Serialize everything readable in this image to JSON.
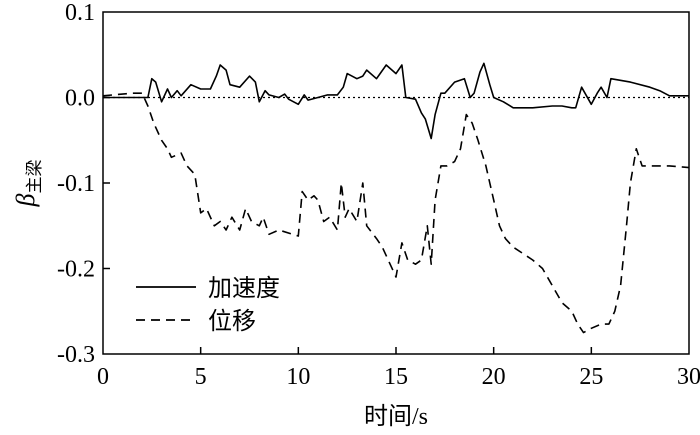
{
  "chart_data": {
    "type": "line",
    "title": "",
    "xlabel": "时间/s",
    "ylabel_main": "β",
    "ylabel_sub": "主梁",
    "xlim": [
      0,
      30
    ],
    "ylim": [
      -0.3,
      0.1
    ],
    "xticks": [
      0,
      5,
      10,
      15,
      20,
      25,
      30
    ],
    "xtick_labels": [
      "0",
      "5",
      "10",
      "15",
      "20",
      "25",
      "30"
    ],
    "yticks": [
      0.1,
      0.0,
      -0.1,
      -0.2,
      -0.3
    ],
    "ytick_labels": [
      "0.1",
      "0.0",
      "-0.1",
      "-0.2",
      "-0.3"
    ],
    "grid": false,
    "legend_position": "bottom-left",
    "reference_line": {
      "y": 0.0,
      "style": "dotted"
    },
    "series": [
      {
        "name": "加速度",
        "style": "solid",
        "x": [
          0,
          2.3,
          2.5,
          2.7,
          3.0,
          3.3,
          3.5,
          3.8,
          4.0,
          4.5,
          5.0,
          5.5,
          5.8,
          6.0,
          6.3,
          6.5,
          7.0,
          7.5,
          7.8,
          8.0,
          8.3,
          8.5,
          9.0,
          9.3,
          9.5,
          10.0,
          10.3,
          10.5,
          11.0,
          11.5,
          12.0,
          12.3,
          12.5,
          13.0,
          13.3,
          13.5,
          14.0,
          14.5,
          15.0,
          15.3,
          15.5,
          16.0,
          16.3,
          16.5,
          16.8,
          17.0,
          17.3,
          17.5,
          18.0,
          18.5,
          18.8,
          19.0,
          19.3,
          19.5,
          19.8,
          20.0,
          20.5,
          21.0,
          22.0,
          23.0,
          23.5,
          24.0,
          24.2,
          24.5,
          25.0,
          25.3,
          25.5,
          25.8,
          26.0,
          27.0,
          28.0,
          28.5,
          29.0,
          30.0
        ],
        "y": [
          0.0,
          0.0,
          0.022,
          0.018,
          -0.005,
          0.01,
          0.0,
          0.008,
          0.002,
          0.015,
          0.01,
          0.01,
          0.025,
          0.038,
          0.032,
          0.015,
          0.012,
          0.025,
          0.018,
          -0.005,
          0.008,
          0.003,
          0.0,
          0.004,
          -0.002,
          -0.008,
          0.003,
          -0.003,
          0.0,
          0.003,
          0.003,
          0.012,
          0.028,
          0.022,
          0.025,
          0.032,
          0.022,
          0.038,
          0.028,
          0.038,
          0.0,
          -0.002,
          -0.018,
          -0.025,
          -0.048,
          -0.02,
          0.005,
          0.005,
          0.018,
          0.022,
          0.0,
          0.005,
          0.03,
          0.04,
          0.015,
          0.0,
          -0.005,
          -0.012,
          -0.012,
          -0.01,
          -0.01,
          -0.012,
          -0.012,
          0.012,
          -0.008,
          0.005,
          0.012,
          0.0,
          0.022,
          0.018,
          0.012,
          0.008,
          0.002,
          0.002
        ]
      },
      {
        "name": "位移",
        "style": "dashed",
        "x": [
          0,
          1.5,
          2.0,
          2.3,
          2.6,
          3.0,
          3.3,
          3.5,
          4.0,
          4.3,
          4.7,
          5.0,
          5.3,
          5.7,
          6.0,
          6.3,
          6.6,
          7.0,
          7.3,
          7.6,
          8.0,
          8.2,
          8.5,
          9.0,
          10.0,
          10.2,
          10.5,
          10.8,
          11.0,
          11.3,
          11.6,
          12.0,
          12.2,
          12.4,
          12.6,
          13.0,
          13.3,
          13.5,
          14.0,
          14.3,
          14.6,
          15.0,
          15.3,
          15.6,
          16.0,
          16.3,
          16.6,
          16.8,
          17.0,
          17.3,
          17.6,
          18.0,
          18.3,
          18.6,
          18.9,
          19.2,
          19.6,
          20.0,
          20.3,
          20.6,
          21.0,
          22.0,
          22.5,
          23.0,
          23.5,
          24.0,
          24.3,
          24.6,
          25.0,
          25.5,
          25.9,
          26.2,
          26.5,
          26.8,
          27.0,
          27.3,
          27.6,
          28.0,
          29.0,
          30.0
        ],
        "y": [
          0.002,
          0.005,
          0.005,
          -0.01,
          -0.03,
          -0.05,
          -0.06,
          -0.07,
          -0.065,
          -0.08,
          -0.09,
          -0.135,
          -0.13,
          -0.15,
          -0.145,
          -0.155,
          -0.14,
          -0.155,
          -0.13,
          -0.145,
          -0.15,
          -0.14,
          -0.16,
          -0.155,
          -0.162,
          -0.11,
          -0.12,
          -0.115,
          -0.12,
          -0.145,
          -0.14,
          -0.155,
          -0.1,
          -0.14,
          -0.13,
          -0.145,
          -0.1,
          -0.15,
          -0.165,
          -0.175,
          -0.19,
          -0.21,
          -0.17,
          -0.19,
          -0.195,
          -0.19,
          -0.15,
          -0.195,
          -0.12,
          -0.08,
          -0.08,
          -0.075,
          -0.06,
          -0.02,
          -0.03,
          -0.05,
          -0.08,
          -0.12,
          -0.15,
          -0.165,
          -0.175,
          -0.19,
          -0.2,
          -0.22,
          -0.24,
          -0.25,
          -0.265,
          -0.275,
          -0.27,
          -0.265,
          -0.265,
          -0.25,
          -0.22,
          -0.15,
          -0.1,
          -0.06,
          -0.08,
          -0.08,
          -0.08,
          -0.082
        ]
      }
    ]
  }
}
